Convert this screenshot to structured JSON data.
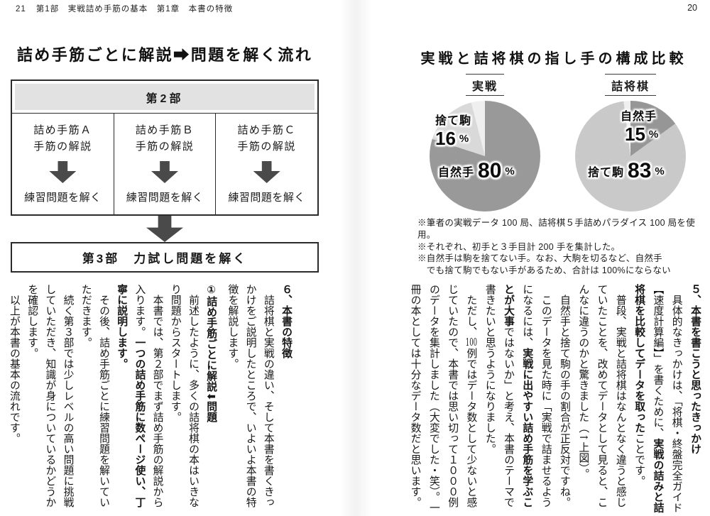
{
  "header": {
    "left_page_number": "21",
    "left_text": "第1部　実戦詰め手筋の基本　第1章　本書の特徴",
    "right_page_number": "20"
  },
  "left_page": {
    "title": "詰め手筋ごとに解説➡問題を解く流れ",
    "flowchart": {
      "part2_header": "第2部",
      "cells": [
        {
          "line1": "詰め手筋Ａ",
          "line2": "手筋の解説",
          "result": "練習問題を解く"
        },
        {
          "line1": "詰め手筋Ｂ",
          "line2": "手筋の解説",
          "result": "練習問題を解く"
        },
        {
          "line1": "詰め手筋Ｃ",
          "line2": "手筋の解説",
          "result": "練習問題を解く"
        }
      ],
      "part3_label": "第3部　力試し問題を解く"
    },
    "paragraphs": [
      {
        "heading": true,
        "segments": [
          {
            "t": "６、本書の特徴"
          }
        ]
      },
      {
        "segments": [
          {
            "t": "　詰将棋と実戦の違い、そして本書を書くきっかけをご説明したところで、いよいよ本書の特徴を解説します。"
          }
        ]
      },
      {
        "heading": true,
        "gap": true,
        "segments": [
          {
            "t": "①詰め手筋ごとに解説"
          },
          {
            "t": "➡",
            "rot": true
          },
          {
            "t": "問題"
          }
        ]
      },
      {
        "segments": [
          {
            "t": "　前述したように、多くの詰将棋の本はいきなり問題からスタートします。"
          }
        ]
      },
      {
        "segments": [
          {
            "t": "　本書では、第２部でまず詰め手筋の解説から入ります。"
          },
          {
            "t": "一つの詰め手筋に数ページ使い、丁寧に説明します。",
            "b": true
          }
        ]
      },
      {
        "segments": [
          {
            "t": "　その後、詰め手筋ごとに練習問題を解いていただきます。"
          }
        ]
      },
      {
        "segments": [
          {
            "t": "　続く第３部では少しレベルの高い問題に挑戦していただき、知識が身についているかどうかを確認します。"
          }
        ]
      },
      {
        "segments": [
          {
            "t": "　以上が本書の基本の流れです。"
          }
        ]
      }
    ]
  },
  "right_page": {
    "title": "実戦と詰将棋の指し手の構成比較",
    "charts": [
      {
        "label": "実戦",
        "unit": "%",
        "slices": [
          {
            "name": "自然手",
            "pct": 80,
            "color": "#999999"
          },
          {
            "name": "捨て駒",
            "pct": 16,
            "color": "#d9d9d9"
          },
          {
            "name": "",
            "pct": 4,
            "color": "#efefef"
          }
        ]
      },
      {
        "label": "詰将棋",
        "unit": "%",
        "slices": [
          {
            "name": "自然手",
            "pct": 15,
            "color": "#969696"
          },
          {
            "name": "捨て駒",
            "pct": 83,
            "color": "#c9c9c9"
          },
          {
            "name": "",
            "pct": 2,
            "color": "#efefef"
          }
        ]
      }
    ],
    "notes": [
      "※筆者の実戦データ 100 局、詰将棋５手詰めパラダイス 100 局を使用。",
      "※それぞれ、初手と３手目計 200 手を集計した。",
      "※自然手は駒を捨てない手。なお、大駒を切るなど、自然手",
      "　でも捨て駒でもない手があるため、合計は 100%にならない"
    ],
    "paragraphs": [
      {
        "heading": true,
        "segments": [
          {
            "t": "５、本書を書こうと思ったきっかけ"
          }
        ]
      },
      {
        "segments": [
          {
            "t": "　具体的なきっかけは、「将棋・終盤完全ガイド【速度計算編】」を書くために、"
          },
          {
            "t": "実戦の詰みと詰将棋を比較してデータを取った",
            "b": true
          },
          {
            "t": "ことです。"
          }
        ]
      },
      {
        "segments": [
          {
            "t": "　普段、実戦と詰将棋はなんとなく違うと感じていたことを、改めてデータとして見ると、こんなに違うのかと驚きました（↑上図）。"
          }
        ]
      },
      {
        "segments": [
          {
            "t": "　自然手と捨て駒の手の割合が正反対ですね。"
          }
        ]
      },
      {
        "segments": [
          {
            "t": "　このデータを見た時に「実戦で詰ませるようになるには、"
          },
          {
            "t": "実戦に出やすい詰め手筋を学ぶことが大事",
            "b": true
          },
          {
            "t": "ではないか」と考え、本書のテーマで書きたいと思うようになりました。"
          }
        ]
      },
      {
        "segments": [
          {
            "t": "　ただし、"
          },
          {
            "t": "100",
            "tcy": true
          },
          {
            "t": "例ではデータ数として少ないと感じていたので、本書では思い切って１０００例のデータを集計しました（大変でした・笑）。一冊の本としては十分なデータ数だと思います。"
          }
        ]
      }
    ]
  },
  "chart_data": [
    {
      "type": "pie",
      "title": "実戦",
      "labels": [
        "自然手",
        "捨て駒",
        "unlabeled"
      ],
      "values": [
        80,
        16,
        4
      ],
      "unit": "%",
      "note": "自然手でも捨て駒でもない手があるため、合計は100%にならない"
    },
    {
      "type": "pie",
      "title": "詰将棋",
      "labels": [
        "自然手",
        "捨て駒",
        "unlabeled"
      ],
      "values": [
        15,
        83,
        2
      ],
      "unit": "%",
      "note": "自然手でも捨て駒でもない手があるため、合計は100%にならない"
    }
  ]
}
